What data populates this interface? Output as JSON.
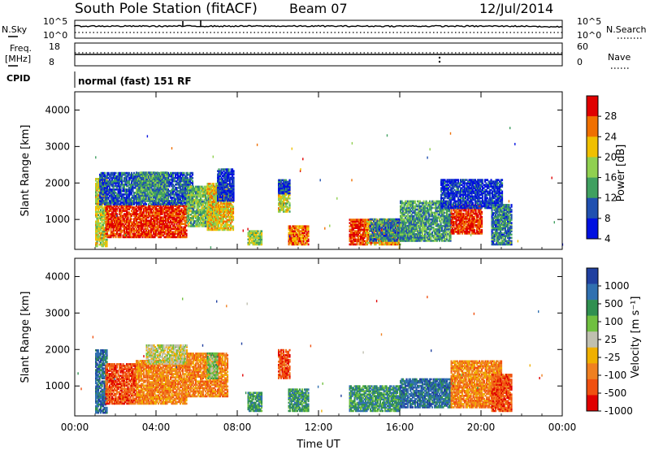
{
  "header": {
    "station": "South Pole Station (fitACF)",
    "beam": "Beam 07",
    "date": "12/Jul/2014"
  },
  "top_panels": {
    "nsky_label": "N.Sky",
    "nsky_ticks": [
      "10^5",
      "10^0"
    ],
    "nsearch_label": "N.Search",
    "nsearch_ticks": [
      "10^5",
      "10^0"
    ],
    "freq_label_lines": [
      "Freq.",
      "[MHz]"
    ],
    "freq_ticks": [
      "18",
      "8"
    ],
    "nave_label": "Nave",
    "nave_ticks": [
      "60",
      "0"
    ],
    "cpid_label": "CPID",
    "cpid_value": "normal (fast) 151 RF"
  },
  "chart_data": [
    {
      "type": "heatmap",
      "name": "power",
      "ylabel": "Slant Range [km]",
      "xlabel": "",
      "y_ticks": [
        1000,
        2000,
        3000,
        4000
      ],
      "ylim": [
        180,
        4500
      ],
      "x_ticks_hours": [
        0,
        4,
        8,
        12,
        16,
        20,
        24
      ],
      "colorbar": {
        "label": "Power [dB]",
        "ticks": [
          "28",
          "24",
          "20",
          "16",
          "12",
          "8",
          "4"
        ],
        "colors": [
          "#e00000",
          "#f07000",
          "#f0c000",
          "#90d050",
          "#40a060",
          "#2050b0",
          "#0010e0"
        ]
      },
      "regions": [
        {
          "t": [
            1.0,
            1.6
          ],
          "r": [
            250,
            2100
          ],
          "v": 18
        },
        {
          "t": [
            1.5,
            5.5
          ],
          "r": [
            500,
            1400
          ],
          "v": 27
        },
        {
          "t": [
            1.2,
            5.8
          ],
          "r": [
            1400,
            2300
          ],
          "v": 8
        },
        {
          "t": [
            3.0,
            4.5
          ],
          "r": [
            1500,
            2300
          ],
          "v": 12
        },
        {
          "t": [
            5.5,
            7.0
          ],
          "r": [
            800,
            1900
          ],
          "v": 14
        },
        {
          "t": [
            6.5,
            7.8
          ],
          "r": [
            700,
            2000
          ],
          "v": 20
        },
        {
          "t": [
            7.0,
            7.8
          ],
          "r": [
            1500,
            2400
          ],
          "v": 6
        },
        {
          "t": [
            8.5,
            9.2
          ],
          "r": [
            300,
            700
          ],
          "v": 16
        },
        {
          "t": [
            10.0,
            10.6
          ],
          "r": [
            1200,
            2000
          ],
          "v": 18
        },
        {
          "t": [
            10.0,
            10.6
          ],
          "r": [
            1700,
            2100
          ],
          "v": 6
        },
        {
          "t": [
            10.5,
            11.5
          ],
          "r": [
            300,
            800
          ],
          "v": 24
        },
        {
          "t": [
            13.5,
            14.3
          ],
          "r": [
            300,
            1000
          ],
          "v": 27
        },
        {
          "t": [
            14.3,
            16.0
          ],
          "r": [
            300,
            1000
          ],
          "v": 22
        },
        {
          "t": [
            14.5,
            17.0
          ],
          "r": [
            400,
            1000
          ],
          "v": 10
        },
        {
          "t": [
            16.0,
            18.5
          ],
          "r": [
            400,
            1500
          ],
          "v": 12
        },
        {
          "t": [
            18.5,
            20.0
          ],
          "r": [
            600,
            1400
          ],
          "v": 27
        },
        {
          "t": [
            18.0,
            21.0
          ],
          "r": [
            1300,
            2100
          ],
          "v": 6
        },
        {
          "t": [
            20.5,
            21.5
          ],
          "r": [
            300,
            1400
          ],
          "v": 10
        }
      ]
    },
    {
      "type": "heatmap",
      "name": "velocity",
      "ylabel": "Slant Range [km]",
      "xlabel": "Time UT",
      "y_ticks": [
        1000,
        2000,
        3000,
        4000
      ],
      "ylim": [
        180,
        4500
      ],
      "x_ticks": [
        "00:00",
        "04:00",
        "08:00",
        "12:00",
        "16:00",
        "20:00",
        "00:00"
      ],
      "colorbar": {
        "label": "Velocity [m s⁻¹]",
        "ticks": [
          "1000",
          "500",
          "100",
          "25",
          "-25",
          "-100",
          "-500",
          "-1000"
        ],
        "colors": [
          "#2040a0",
          "#3070b0",
          "#309050",
          "#70c040",
          "#c0c0b0",
          "#f0b000",
          "#f08020",
          "#f05010",
          "#e00000"
        ]
      },
      "regions": [
        {
          "t": [
            1.0,
            1.6
          ],
          "r": [
            250,
            2000
          ],
          "v": 1
        },
        {
          "t": [
            1.5,
            3.0
          ],
          "r": [
            500,
            1600
          ],
          "v": 7
        },
        {
          "t": [
            3.0,
            5.5
          ],
          "r": [
            500,
            1700
          ],
          "v": 6
        },
        {
          "t": [
            3.5,
            5.5
          ],
          "r": [
            1600,
            2100
          ],
          "v": 4
        },
        {
          "t": [
            5.5,
            7.5
          ],
          "r": [
            700,
            1900
          ],
          "v": 6
        },
        {
          "t": [
            6.5,
            7.0
          ],
          "r": [
            1200,
            1900
          ],
          "v": 3
        },
        {
          "t": [
            8.5,
            9.2
          ],
          "r": [
            300,
            800
          ],
          "v": 2
        },
        {
          "t": [
            10.0,
            10.6
          ],
          "r": [
            1200,
            2000
          ],
          "v": 7
        },
        {
          "t": [
            10.5,
            11.5
          ],
          "r": [
            300,
            900
          ],
          "v": 2
        },
        {
          "t": [
            13.5,
            16.0
          ],
          "r": [
            300,
            1000
          ],
          "v": 2
        },
        {
          "t": [
            16.0,
            18.5
          ],
          "r": [
            400,
            1200
          ],
          "v": 1
        },
        {
          "t": [
            18.5,
            21.0
          ],
          "r": [
            400,
            1700
          ],
          "v": 6
        },
        {
          "t": [
            20.5,
            21.5
          ],
          "r": [
            300,
            1300
          ],
          "v": 7
        }
      ]
    }
  ]
}
